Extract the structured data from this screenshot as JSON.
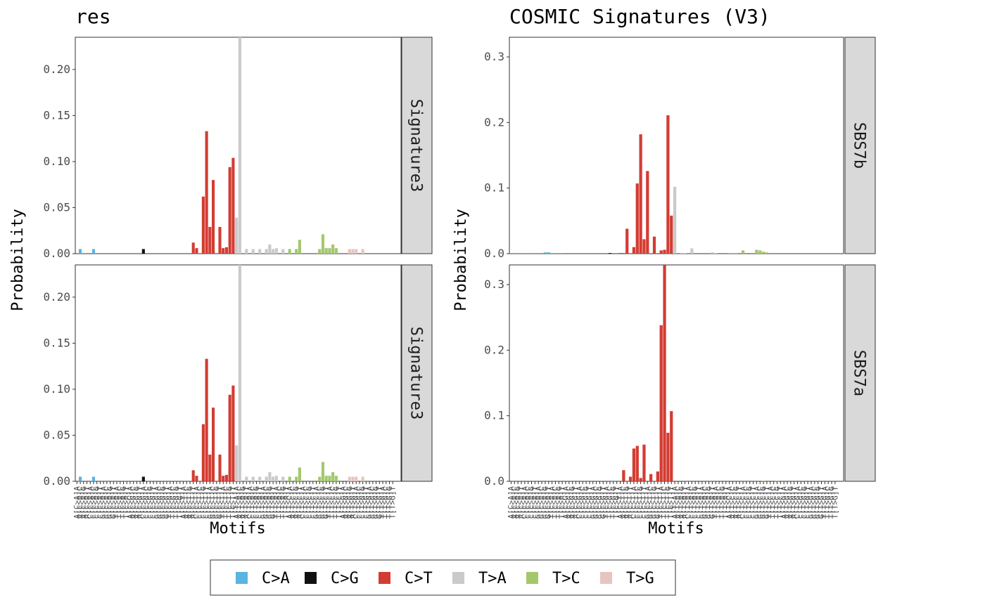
{
  "palette": {
    "C>A": "#5ab4e0",
    "C>G": "#111111",
    "C>T": "#d33c32",
    "T>A": "#cbcacb",
    "T>C": "#a3c86b",
    "T>G": "#e8c4c0"
  },
  "legend": [
    "C>A",
    "C>G",
    "C>T",
    "T>A",
    "T>C",
    "T>G"
  ],
  "xtick_labels": [
    "A[C>A]A",
    "A[C>A]C",
    "A[C>A]G",
    "A[C>A]T",
    "C[C>A]A",
    "C[C>A]C",
    "C[C>A]G",
    "C[C>A]T",
    "G[C>A]A",
    "G[C>A]C",
    "G[C>A]G",
    "G[C>A]T",
    "T[C>A]A",
    "T[C>A]C",
    "T[C>A]G",
    "T[C>A]T",
    "A[C>G]A",
    "A[C>G]C",
    "A[C>G]G",
    "A[C>G]T",
    "C[C>G]A",
    "C[C>G]C",
    "C[C>G]G",
    "C[C>G]T",
    "G[C>G]A",
    "G[C>G]C",
    "G[C>G]G",
    "G[C>G]T",
    "T[C>G]A",
    "T[C>G]C",
    "T[C>G]G",
    "T[C>G]T",
    "A[C>T]A",
    "A[C>T]C",
    "A[C>T]G",
    "A[C>T]T",
    "C[C>T]A",
    "C[C>T]C",
    "C[C>T]G",
    "C[C>T]T",
    "G[C>T]A",
    "G[C>T]C",
    "G[C>T]G",
    "G[C>T]T",
    "T[C>T]A",
    "T[C>T]C",
    "T[C>T]G",
    "T[C>T]T",
    "A[T>A]A",
    "A[T>A]C",
    "A[T>A]G",
    "A[T>A]T",
    "C[T>A]A",
    "C[T>A]C",
    "C[T>A]G",
    "C[T>A]T",
    "G[T>A]A",
    "G[T>A]C",
    "G[T>A]G",
    "G[T>A]T",
    "T[T>A]A",
    "T[T>A]C",
    "T[T>A]G",
    "T[T>A]T",
    "A[T>C]A",
    "A[T>C]C",
    "A[T>C]G",
    "A[T>C]T",
    "C[T>C]A",
    "C[T>C]C",
    "C[T>C]G",
    "C[T>C]T",
    "G[T>C]A",
    "G[T>C]C",
    "G[T>C]G",
    "G[T>C]T",
    "T[T>C]A",
    "T[T>C]C",
    "T[T>C]G",
    "T[T>C]T",
    "A[T>G]A",
    "A[T>G]C",
    "A[T>G]G",
    "A[T>G]T",
    "C[T>G]A",
    "C[T>G]C",
    "C[T>G]G",
    "C[T>G]T",
    "G[T>G]A",
    "G[T>G]C",
    "G[T>G]G",
    "G[T>G]T",
    "T[T>G]A",
    "T[T>G]C",
    "T[T>G]G",
    "T[T>G]T"
  ],
  "chart_data": [
    {
      "type": "bar",
      "title": "res",
      "xlabel": "Motifs",
      "ylabel": "Probability",
      "ylim": [
        0,
        0.235
      ],
      "yticks": [
        0.0,
        0.05,
        0.1,
        0.15,
        0.2
      ],
      "ytick_labels": [
        "0.00",
        "0.05",
        "0.10",
        "0.15",
        "0.20"
      ],
      "panels": [
        {
          "strip": "Signature3",
          "values": [
            0.0,
            0.005,
            0.0,
            0.0,
            0.0,
            0.005,
            0.0,
            0.0,
            0.0,
            0.0,
            0.0,
            0.0,
            0.0,
            0.0,
            0.0,
            0.0,
            0.0,
            0.0,
            0.0,
            0.0,
            0.005,
            0.0,
            0.0,
            0.0,
            0.0,
            0.0,
            0.0,
            0.0,
            0.0,
            0.0,
            0.0,
            0.0,
            0.0,
            0.0,
            0.0,
            0.012,
            0.006,
            0.0,
            0.062,
            0.133,
            0.029,
            0.08,
            0.0,
            0.029,
            0.006,
            0.007,
            0.094,
            0.104,
            0.039,
            0.235,
            0.0,
            0.005,
            0.0,
            0.005,
            0.0,
            0.005,
            0.0,
            0.005,
            0.01,
            0.005,
            0.006,
            0.0,
            0.005,
            0.0,
            0.005,
            0.0,
            0.005,
            0.015,
            0.0,
            0.0,
            0.0,
            0.0,
            0.0,
            0.005,
            0.021,
            0.006,
            0.006,
            0.01,
            0.006,
            0.0,
            0.0,
            0.0,
            0.005,
            0.005,
            0.005,
            0.0,
            0.005,
            0.0,
            0.0,
            0.0,
            0.0,
            0.0,
            0.0,
            0.0,
            0.0,
            0.0,
            0.0,
            0.0
          ]
        },
        {
          "strip": "Signature3",
          "values": [
            0.0,
            0.005,
            0.0,
            0.0,
            0.0,
            0.005,
            0.0,
            0.0,
            0.0,
            0.0,
            0.0,
            0.0,
            0.0,
            0.0,
            0.0,
            0.0,
            0.0,
            0.0,
            0.0,
            0.0,
            0.005,
            0.0,
            0.0,
            0.0,
            0.0,
            0.0,
            0.0,
            0.0,
            0.0,
            0.0,
            0.0,
            0.0,
            0.0,
            0.0,
            0.0,
            0.012,
            0.006,
            0.0,
            0.062,
            0.133,
            0.029,
            0.08,
            0.0,
            0.029,
            0.006,
            0.007,
            0.094,
            0.104,
            0.039,
            0.235,
            0.0,
            0.005,
            0.0,
            0.005,
            0.0,
            0.005,
            0.0,
            0.005,
            0.01,
            0.005,
            0.006,
            0.0,
            0.005,
            0.0,
            0.005,
            0.0,
            0.005,
            0.015,
            0.0,
            0.0,
            0.0,
            0.0,
            0.0,
            0.005,
            0.021,
            0.006,
            0.006,
            0.01,
            0.006,
            0.0,
            0.0,
            0.0,
            0.005,
            0.005,
            0.005,
            0.0,
            0.005,
            0.0,
            0.0,
            0.0,
            0.0,
            0.0,
            0.0,
            0.0,
            0.0,
            0.0,
            0.0,
            0.0
          ]
        }
      ]
    },
    {
      "type": "bar",
      "title": "COSMIC Signatures (V3)",
      "xlabel": "Motifs",
      "ylabel": "Probability",
      "ylim": [
        0,
        0.33
      ],
      "yticks": [
        0.0,
        0.1,
        0.2,
        0.3
      ],
      "ytick_labels": [
        "0.0",
        "0.1",
        "0.2",
        "0.3"
      ],
      "panels": [
        {
          "strip": "SBS7b",
          "values": [
            0.001,
            0.001,
            0.001,
            0.001,
            0.001,
            0.001,
            0.001,
            0.001,
            0.001,
            0.001,
            0.002,
            0.002,
            0.001,
            0.001,
            0.001,
            0.001,
            0.0,
            0.0,
            0.0,
            0.0,
            0.0,
            0.0,
            0.0,
            0.0,
            0.0,
            0.0,
            0.0,
            0.0,
            0.0,
            0.001,
            0.0,
            0.0,
            0.001,
            0.001,
            0.038,
            0.0,
            0.01,
            0.107,
            0.182,
            0.022,
            0.126,
            0.0,
            0.026,
            0.0,
            0.005,
            0.006,
            0.211,
            0.058,
            0.102,
            0.0,
            0.001,
            0.001,
            0.0,
            0.008,
            0.0,
            0.0,
            0.0,
            0.0,
            0.0,
            0.002,
            0.001,
            0.0,
            0.0,
            0.0,
            0.001,
            0.001,
            0.001,
            0.0,
            0.005,
            0.0,
            0.0,
            0.0,
            0.006,
            0.005,
            0.003,
            0.002,
            0.0,
            0.0,
            0.0,
            0.0,
            0.0,
            0.0,
            0.0,
            0.0,
            0.0,
            0.0,
            0.0,
            0.0,
            0.0,
            0.0,
            0.0,
            0.0,
            0.0,
            0.0,
            0.0,
            0.0,
            0.0,
            0.0
          ]
        },
        {
          "strip": "SBS7a",
          "values": [
            0.0,
            0.0,
            0.0,
            0.0,
            0.0,
            0.0,
            0.0,
            0.0,
            0.0,
            0.0,
            0.0,
            0.0,
            0.0,
            0.0,
            0.0,
            0.0,
            0.0,
            0.0,
            0.0,
            0.0,
            0.0,
            0.0,
            0.0,
            0.0,
            0.0,
            0.0,
            0.0,
            0.0,
            0.0,
            0.0,
            0.0,
            0.0,
            0.0,
            0.017,
            0.0,
            0.007,
            0.05,
            0.054,
            0.005,
            0.056,
            0.0,
            0.011,
            0.0,
            0.015,
            0.238,
            0.33,
            0.074,
            0.107,
            0.0,
            0.0,
            0.0,
            0.0,
            0.002,
            0.0,
            0.0,
            0.0,
            0.0,
            0.0,
            0.0,
            0.0,
            0.0,
            0.0,
            0.0,
            0.0,
            0.0,
            0.0,
            0.0,
            0.0,
            0.0,
            0.0,
            0.0,
            0.0,
            0.0,
            0.0,
            0.001,
            0.0,
            0.0,
            0.0,
            0.001,
            0.0,
            0.0,
            0.0,
            0.0,
            0.0,
            0.0,
            0.0,
            0.0,
            0.0,
            0.0,
            0.0,
            0.0,
            0.0,
            0.0,
            0.0,
            0.0,
            0.0,
            0.0,
            0.0
          ]
        }
      ]
    }
  ]
}
